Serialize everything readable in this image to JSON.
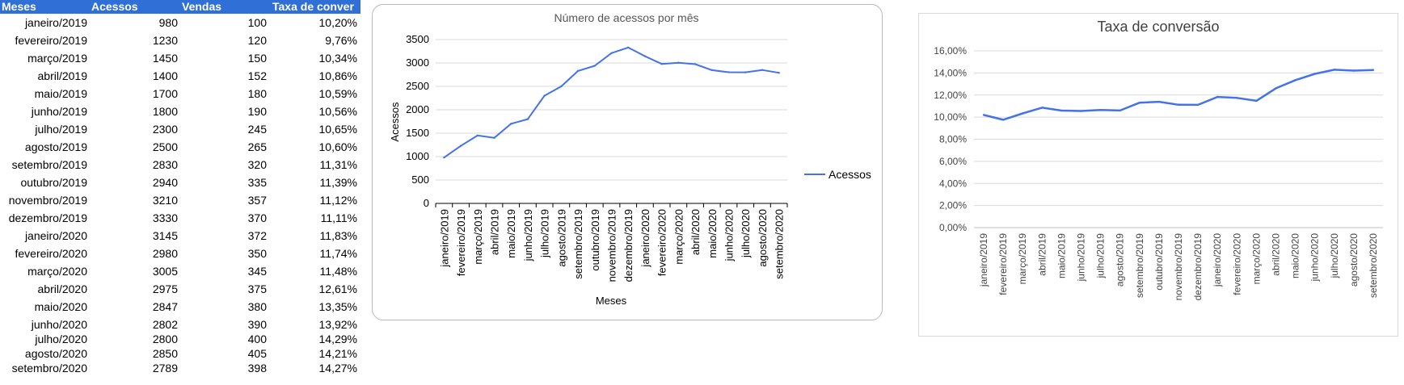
{
  "table": {
    "headers": [
      "Meses",
      "Acessos",
      "Vendas",
      "Taxa de conver"
    ],
    "rows": [
      [
        "janeiro/2019",
        "980",
        "100",
        "10,20%"
      ],
      [
        "fevereiro/2019",
        "1230",
        "120",
        "9,76%"
      ],
      [
        "março/2019",
        "1450",
        "150",
        "10,34%"
      ],
      [
        "abril/2019",
        "1400",
        "152",
        "10,86%"
      ],
      [
        "maio/2019",
        "1700",
        "180",
        "10,59%"
      ],
      [
        "junho/2019",
        "1800",
        "190",
        "10,56%"
      ],
      [
        "julho/2019",
        "2300",
        "245",
        "10,65%"
      ],
      [
        "agosto/2019",
        "2500",
        "265",
        "10,60%"
      ],
      [
        "setembro/2019",
        "2830",
        "320",
        "11,31%"
      ],
      [
        "outubro/2019",
        "2940",
        "335",
        "11,39%"
      ],
      [
        "novembro/2019",
        "3210",
        "357",
        "11,12%"
      ],
      [
        "dezembro/2019",
        "3330",
        "370",
        "11,11%"
      ],
      [
        "janeiro/2020",
        "3145",
        "372",
        "11,83%"
      ],
      [
        "fevereiro/2020",
        "2980",
        "350",
        "11,74%"
      ],
      [
        "março/2020",
        "3005",
        "345",
        "11,48%"
      ],
      [
        "abril/2020",
        "2975",
        "375",
        "12,61%"
      ],
      [
        "maio/2020",
        "2847",
        "380",
        "13,35%"
      ],
      [
        "junho/2020",
        "2802",
        "390",
        "13,92%"
      ],
      [
        "julho/2020",
        "2800",
        "400",
        "14,29%"
      ],
      [
        "agosto/2020",
        "2850",
        "405",
        "14,21%"
      ],
      [
        "setembro/2020",
        "2789",
        "398",
        "14,27%"
      ]
    ]
  },
  "chart_data": [
    {
      "type": "line",
      "title": "Número de acessos por mês",
      "xlabel": "Meses",
      "ylabel": "Acessos",
      "categories": [
        "janeiro/2019",
        "fevereiro/2019",
        "março/2019",
        "abril/2019",
        "maio/2019",
        "junho/2019",
        "julho/2019",
        "agosto/2019",
        "setembro/2019",
        "outubro/2019",
        "novembro/2019",
        "dezembro/2019",
        "janeiro/2020",
        "fevereiro/2020",
        "março/2020",
        "abril/2020",
        "maio/2020",
        "junho/2020",
        "julho/2020",
        "agosto/2020",
        "setembro/2020"
      ],
      "series": [
        {
          "name": "Acessos",
          "values": [
            980,
            1230,
            1450,
            1400,
            1700,
            1800,
            2300,
            2500,
            2830,
            2940,
            3210,
            3330,
            3145,
            2980,
            3005,
            2975,
            2847,
            2802,
            2800,
            2850,
            2789
          ]
        }
      ],
      "ylim": [
        0,
        3500
      ],
      "yticks": [
        "0",
        "500",
        "1000",
        "1500",
        "2000",
        "2500",
        "3000",
        "3500"
      ],
      "grid": true,
      "legend": "right",
      "color": "#4472e8"
    },
    {
      "type": "line",
      "title": "Taxa de conversão",
      "categories": [
        "janeiro/2019",
        "fevereiro/2019",
        "março/2019",
        "abril/2019",
        "maio/2019",
        "junho/2019",
        "julho/2019",
        "agosto/2019",
        "setembro/2019",
        "outubro/2019",
        "novembro/2019",
        "dezembro/2019",
        "janeiro/2020",
        "fevereiro/2020",
        "março/2020",
        "abril/2020",
        "maio/2020",
        "junho/2020",
        "julho/2020",
        "agosto/2020",
        "setembro/2020"
      ],
      "series": [
        {
          "values": [
            10.2,
            9.76,
            10.34,
            10.86,
            10.59,
            10.56,
            10.65,
            10.6,
            11.31,
            11.39,
            11.12,
            11.11,
            11.83,
            11.74,
            11.48,
            12.61,
            13.35,
            13.92,
            14.29,
            14.21,
            14.27
          ]
        }
      ],
      "ylim": [
        0,
        16
      ],
      "yticks": [
        "0,00%",
        "2,00%",
        "4,00%",
        "6,00%",
        "8,00%",
        "10,00%",
        "12,00%",
        "14,00%",
        "16,00%"
      ],
      "grid": true,
      "legend": "none",
      "color": "#4472e8"
    }
  ]
}
